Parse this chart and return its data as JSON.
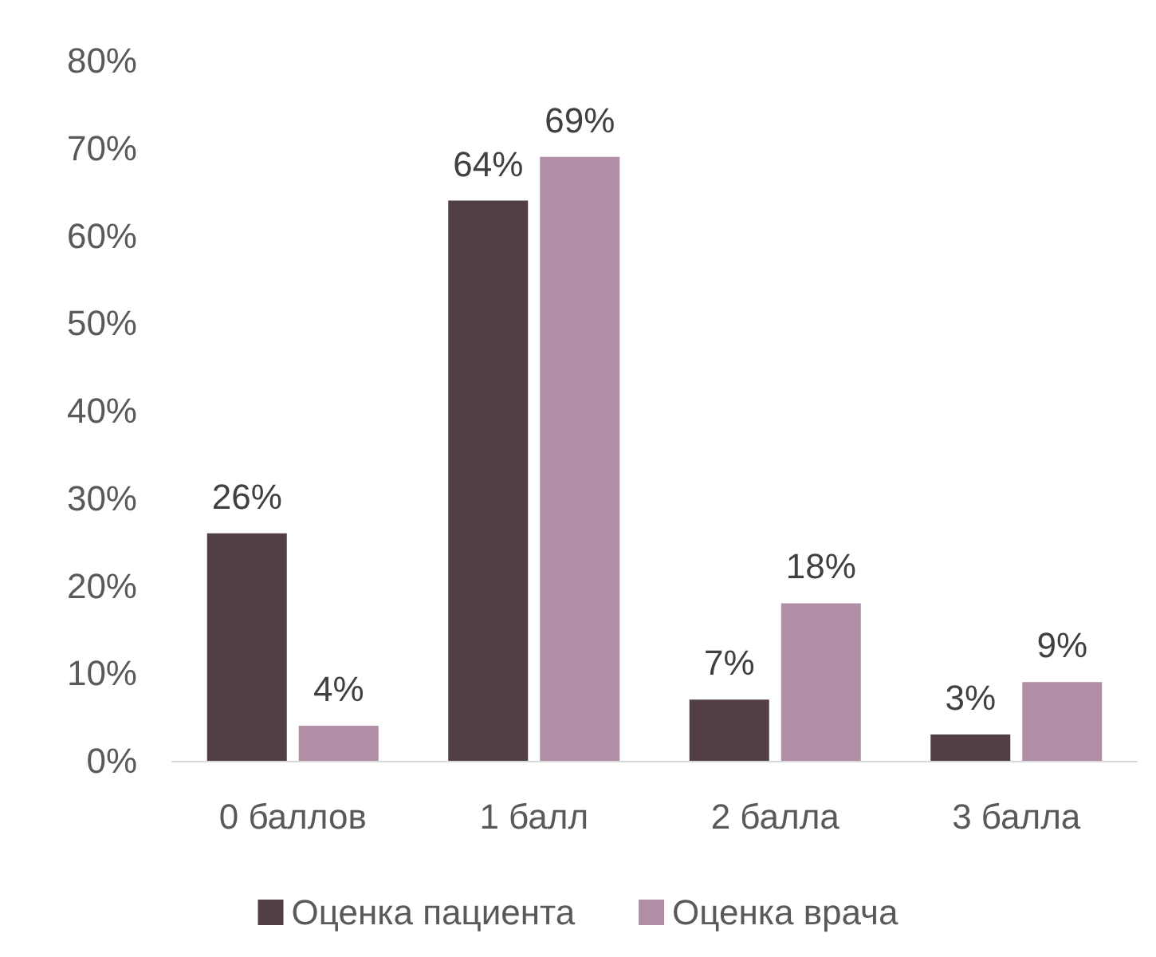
{
  "chart_data": {
    "type": "bar",
    "categories": [
      "0 баллов",
      "1 балл",
      "2 балла",
      "3 балла"
    ],
    "series": [
      {
        "name": "Оценка пациента",
        "color": "#523e45",
        "values": [
          26,
          64,
          7,
          3
        ],
        "value_labels": [
          "26%",
          "64%",
          "7%",
          "3%"
        ]
      },
      {
        "name": "Оценка врача",
        "color": "#b08ea6",
        "values": [
          4,
          69,
          18,
          9
        ],
        "value_labels": [
          "4%",
          "69%",
          "18%",
          "9%"
        ]
      }
    ],
    "ylim": [
      0,
      80
    ],
    "yticks": [
      {
        "value": 0,
        "label": "0%"
      },
      {
        "value": 10,
        "label": "10%"
      },
      {
        "value": 20,
        "label": "20%"
      },
      {
        "value": 30,
        "label": "30%"
      },
      {
        "value": 40,
        "label": "40%"
      },
      {
        "value": 50,
        "label": "50%"
      },
      {
        "value": 60,
        "label": "60%"
      },
      {
        "value": 70,
        "label": "70%"
      },
      {
        "value": 80,
        "label": "80%"
      }
    ],
    "grid": false,
    "legend": "bottom"
  }
}
